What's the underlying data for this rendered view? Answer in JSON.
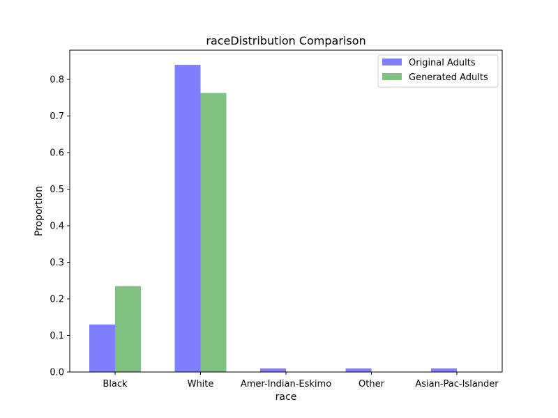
{
  "chart_data": {
    "type": "bar",
    "title": "raceDistribution Comparison",
    "xlabel": "race",
    "ylabel": "Proportion",
    "categories": [
      "Black",
      "White",
      "Amer-Indian-Eskimo",
      "Other",
      "Asian-Pac-Islander"
    ],
    "series": [
      {
        "name": "Original Adults",
        "color": "#8080ff",
        "values": [
          0.13,
          0.84,
          0.01,
          0.01,
          0.01
        ]
      },
      {
        "name": "Generated Adults",
        "color": "#80c080",
        "values": [
          0.235,
          0.763,
          0.0,
          0.0,
          0.0
        ]
      }
    ],
    "ylim": [
      0,
      0.88
    ],
    "yticks": [
      "0.0",
      "0.1",
      "0.2",
      "0.3",
      "0.4",
      "0.5",
      "0.6",
      "0.7",
      "0.8"
    ],
    "grid": false,
    "legend": "top-right"
  }
}
